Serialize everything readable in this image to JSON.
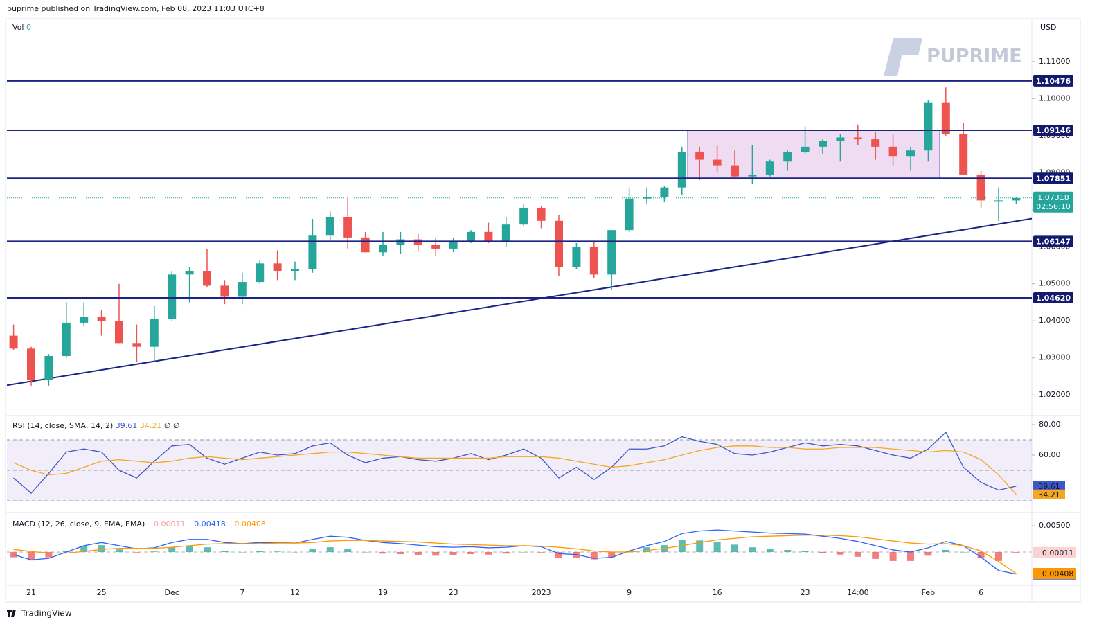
{
  "header": {
    "publisher": "puprime published on TradingView.com, Feb 08, 2023 11:03 UTC+8",
    "watermark": "PUPRIME",
    "footer": "TradingView"
  },
  "chart_data": [
    {
      "type": "candlestick",
      "volume_label": "Vol",
      "volume": 0,
      "currency": "USD",
      "categories": [
        null,
        "21",
        null,
        null,
        null,
        "25",
        null,
        null,
        null,
        "Dec",
        null,
        null,
        null,
        "7",
        null,
        null,
        "12",
        null,
        null,
        null,
        null,
        "19",
        null,
        null,
        null,
        "23",
        null,
        null,
        null,
        null,
        "2023",
        null,
        null,
        null,
        null,
        "9",
        null,
        null,
        null,
        null,
        "16",
        null,
        null,
        null,
        null,
        "23",
        null,
        null,
        "14:00",
        null,
        null,
        null,
        "Feb",
        null,
        null,
        "6",
        null,
        null
      ],
      "ohlc": [
        [
          1.036,
          1.039,
          1.032,
          1.0325
        ],
        [
          1.0325,
          1.033,
          1.0225,
          1.024
        ],
        [
          1.024,
          1.031,
          1.0225,
          1.0305
        ],
        [
          1.0305,
          1.045,
          1.03,
          1.0395
        ],
        [
          1.0395,
          1.045,
          1.0385,
          1.041
        ],
        [
          1.041,
          1.043,
          1.036,
          1.04
        ],
        [
          1.04,
          1.05,
          1.034,
          1.034
        ],
        [
          1.034,
          1.039,
          1.029,
          1.033
        ],
        [
          1.033,
          1.044,
          1.029,
          1.0405
        ],
        [
          1.0405,
          1.0535,
          1.04,
          1.0525
        ],
        [
          1.0525,
          1.0545,
          1.045,
          1.0535
        ],
        [
          1.0535,
          1.0595,
          1.049,
          1.0495
        ],
        [
          1.0495,
          1.051,
          1.0445,
          1.0465
        ],
        [
          1.0465,
          1.053,
          1.0445,
          1.0505
        ],
        [
          1.0505,
          1.0565,
          1.05,
          1.0555
        ],
        [
          1.0555,
          1.059,
          1.051,
          1.0535
        ],
        [
          1.0535,
          1.056,
          1.051,
          1.054
        ],
        [
          1.054,
          1.0675,
          1.053,
          1.063
        ],
        [
          1.063,
          1.0695,
          1.0615,
          1.068
        ],
        [
          1.068,
          1.0735,
          1.0595,
          1.0625
        ],
        [
          1.0625,
          1.064,
          1.0585,
          1.0585
        ],
        [
          1.0585,
          1.064,
          1.0575,
          1.0605
        ],
        [
          1.0605,
          1.064,
          1.058,
          1.062
        ],
        [
          1.062,
          1.0635,
          1.059,
          1.0605
        ],
        [
          1.0605,
          1.0625,
          1.0575,
          1.0595
        ],
        [
          1.0595,
          1.0625,
          1.0585,
          1.0615
        ],
        [
          1.0615,
          1.0645,
          1.061,
          1.064
        ],
        [
          1.064,
          1.0665,
          1.061,
          1.0615
        ],
        [
          1.0615,
          1.068,
          1.06,
          1.066
        ],
        [
          1.066,
          1.0715,
          1.0655,
          1.0705
        ],
        [
          1.0705,
          1.071,
          1.065,
          1.067
        ],
        [
          1.067,
          1.0685,
          1.052,
          1.0545
        ],
        [
          1.0545,
          1.061,
          1.054,
          1.06
        ],
        [
          1.06,
          1.0615,
          1.0515,
          1.0525
        ],
        [
          1.0525,
          1.0645,
          1.0485,
          1.0645
        ],
        [
          1.0645,
          1.076,
          1.064,
          1.073
        ],
        [
          1.073,
          1.076,
          1.0715,
          1.0735
        ],
        [
          1.0735,
          1.0765,
          1.072,
          1.076
        ],
        [
          1.076,
          1.087,
          1.074,
          1.0855
        ],
        [
          1.0855,
          1.087,
          1.078,
          1.0835
        ],
        [
          1.0835,
          1.0875,
          1.08,
          1.082
        ],
        [
          1.082,
          1.086,
          1.0785,
          1.079
        ],
        [
          1.079,
          1.0875,
          1.077,
          1.0795
        ],
        [
          1.0795,
          1.0835,
          1.079,
          1.083
        ],
        [
          1.083,
          1.086,
          1.0805,
          1.0855
        ],
        [
          1.0855,
          1.0925,
          1.085,
          1.087
        ],
        [
          1.087,
          1.089,
          1.085,
          1.0885
        ],
        [
          1.0885,
          1.0905,
          1.083,
          1.0895
        ],
        [
          1.0895,
          1.093,
          1.0875,
          1.089
        ],
        [
          1.089,
          1.091,
          1.0835,
          1.087
        ],
        [
          1.087,
          1.0905,
          1.082,
          1.0845
        ],
        [
          1.0845,
          1.087,
          1.0805,
          1.086
        ],
        [
          1.086,
          1.0995,
          1.083,
          1.099
        ],
        [
          1.099,
          1.103,
          1.09,
          1.0905
        ],
        [
          1.0905,
          1.0935,
          1.0795,
          1.0795
        ],
        [
          1.0795,
          1.0805,
          1.0705,
          1.0725
        ],
        [
          1.0725,
          1.076,
          1.067,
          1.0725
        ],
        [
          1.0725,
          1.0735,
          1.0715,
          1.07318
        ]
      ],
      "up_color": "#26a69a",
      "down_color": "#ef5350",
      "ylim": [
        1.0148,
        1.121
      ],
      "yticks": [
        {
          "value": 1.02,
          "label": "1.02000"
        },
        {
          "value": 1.03,
          "label": "1.03000"
        },
        {
          "value": 1.04,
          "label": "1.04000"
        },
        {
          "value": 1.05,
          "label": "1.05000"
        },
        {
          "value": 1.06,
          "label": "1.06000"
        },
        {
          "value": 1.07,
          "label": "1.07000"
        },
        {
          "value": 1.08,
          "label": "1.08000"
        },
        {
          "value": 1.09,
          "label": "1.09000"
        },
        {
          "value": 1.1,
          "label": "1.10000"
        },
        {
          "value": 1.11,
          "label": "1.11000"
        }
      ],
      "levels": [
        1.10476,
        1.09146,
        1.07851,
        1.06147,
        {
          "value": 1.0462,
          "label": "1.04620"
        }
      ],
      "level_color": "#1c2387",
      "current_price": 1.07318,
      "countdown": "02:56:10",
      "trendline": {
        "start": 1.0226,
        "end": 1.0676
      }
    },
    {
      "type": "line",
      "title": "RSI (14, close, SMA, 14, 2)",
      "na_marks": "∅ ∅",
      "series": [
        {
          "color": "#3d56c8",
          "values": [
            45,
            35,
            48,
            62,
            64,
            62,
            50,
            45,
            56,
            66,
            67,
            58,
            54,
            58,
            62,
            60,
            61,
            66,
            68,
            60,
            55,
            58,
            59,
            57,
            56,
            58,
            61,
            57,
            60,
            64,
            58,
            45,
            52,
            44,
            52,
            64,
            64,
            66,
            72,
            69,
            67,
            61,
            60,
            62,
            65,
            68,
            66,
            67,
            66,
            63,
            60,
            58,
            64,
            75,
            52,
            42,
            37,
            39.61
          ]
        },
        {
          "color": "#f5a623",
          "values": [
            55,
            50,
            47,
            48,
            52,
            56,
            57,
            56,
            55,
            56,
            58,
            59,
            58,
            57,
            58,
            59,
            60,
            61,
            62,
            62,
            61,
            60,
            59,
            58,
            58,
            58,
            58,
            58,
            59,
            59,
            59,
            58,
            56,
            54,
            52,
            53,
            55,
            57,
            60,
            63,
            65,
            66,
            66,
            65,
            65,
            64,
            64,
            65,
            65,
            65,
            64,
            63,
            62,
            63,
            62,
            57,
            47,
            34.21
          ]
        }
      ],
      "ylim": [
        23.2,
        85
      ],
      "yticks": [
        {
          "value": 80,
          "label": "80.00"
        },
        {
          "value": 60,
          "label": "60.00"
        }
      ]
    },
    {
      "type": "macd",
      "title": "MACD (12, 26, close, 9, EMA, EMA)",
      "series": [
        {
          "type": "histogram",
          "color": "#26a69a",
          "negative_color": "#ef5350",
          "last_label": "−0.00011",
          "values": [
            -0.001,
            -0.0016,
            -0.001,
            0.0002,
            0.0011,
            0.0013,
            0.0005,
            -0.0001,
            0.0001,
            0.0009,
            0.0012,
            0.0009,
            0.0002,
            0.0,
            0.0002,
            0.0001,
            0.0,
            0.0006,
            0.0009,
            0.0006,
            0.0,
            -0.0003,
            -0.0004,
            -0.0006,
            -0.0007,
            -0.0006,
            -0.0004,
            -0.0005,
            -0.0003,
            0.0,
            -0.0001,
            -0.0012,
            -0.0011,
            -0.0014,
            -0.001,
            0.0002,
            0.0009,
            0.0013,
            0.0023,
            0.0022,
            0.0019,
            0.0014,
            0.0009,
            0.0006,
            0.0004,
            0.0002,
            -0.0002,
            -0.0005,
            -0.0009,
            -0.0013,
            -0.0017,
            -0.0017,
            -0.0007,
            0.0004,
            0.0,
            -0.0012,
            -0.0017,
            -0.00011
          ]
        },
        {
          "type": "line",
          "color": "#2962ff",
          "last_label": "−0.00418",
          "values": [
            -0.0005,
            -0.0015,
            -0.0012,
            0.0,
            0.0012,
            0.0018,
            0.0012,
            0.0006,
            0.0008,
            0.0018,
            0.0024,
            0.0024,
            0.0018,
            0.0016,
            0.0018,
            0.0018,
            0.0017,
            0.0024,
            0.003,
            0.0028,
            0.0022,
            0.0018,
            0.0016,
            0.0013,
            0.001,
            0.0009,
            0.001,
            0.0008,
            0.0009,
            0.0012,
            0.001,
            -0.0003,
            -0.0005,
            -0.0012,
            -0.001,
            0.0002,
            0.0012,
            0.002,
            0.0035,
            0.004,
            0.0042,
            0.004,
            0.0038,
            0.0036,
            0.0035,
            0.0034,
            0.003,
            0.0026,
            0.002,
            0.0012,
            0.0004,
            0.0,
            0.0008,
            0.002,
            0.0012,
            -0.001,
            -0.0035,
            -0.00418
          ]
        },
        {
          "type": "line",
          "color": "#ff9800",
          "last_label": "−0.00408",
          "values": [
            0.0005,
            0.0001,
            -0.0002,
            -0.0002,
            0.0001,
            0.0005,
            0.0007,
            0.0007,
            0.0007,
            0.0009,
            0.0012,
            0.0015,
            0.0016,
            0.0016,
            0.0016,
            0.0017,
            0.0017,
            0.0018,
            0.0021,
            0.0022,
            0.0022,
            0.0021,
            0.002,
            0.0019,
            0.0017,
            0.0015,
            0.0014,
            0.0013,
            0.0012,
            0.0012,
            0.0011,
            0.0009,
            0.0006,
            0.0002,
            0.0,
            0.0,
            0.0003,
            0.0007,
            0.0012,
            0.0018,
            0.0023,
            0.0026,
            0.0029,
            0.003,
            0.0031,
            0.0032,
            0.0032,
            0.0031,
            0.0029,
            0.0025,
            0.0021,
            0.0017,
            0.0015,
            0.0016,
            0.0012,
            0.0002,
            -0.0018,
            -0.00408
          ]
        }
      ],
      "ylim": [
        -0.00632,
        0.00724
      ],
      "yticks": [
        {
          "value": 0.005,
          "label": "0.00500"
        }
      ]
    }
  ]
}
